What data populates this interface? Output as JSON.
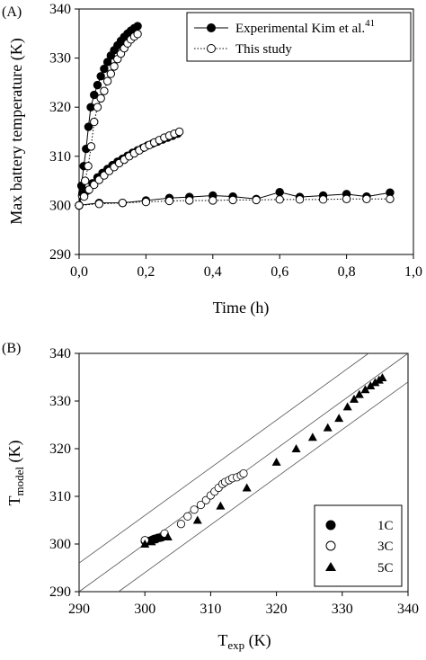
{
  "panels": {
    "a_label": "(A)",
    "b_label": "(B)"
  },
  "chart_data": [
    {
      "type": "line",
      "panel": "(A)",
      "xlabel": "Time (h)",
      "ylabel": "Max battery temperature (K)",
      "xlim": [
        0,
        1.0
      ],
      "ylim": [
        290,
        340
      ],
      "xticks": [
        0,
        0.2,
        0.4,
        0.6,
        0.8,
        1.0
      ],
      "xtick_labels": [
        "0,0",
        "0,2",
        "0,4",
        "0,6",
        "0,8",
        "1,0"
      ],
      "yticks": [
        290,
        300,
        310,
        320,
        330,
        340
      ],
      "ytick_labels": [
        "290",
        "300",
        "310",
        "320",
        "330",
        "340"
      ],
      "legend_position": "top-right",
      "legend": [
        {
          "label": "Experimental Kim et al.",
          "superscript": "41",
          "marker": "filled-circle",
          "line": "solid"
        },
        {
          "label": "This study",
          "superscript": "",
          "marker": "open-circle",
          "line": "dotted"
        }
      ],
      "series": [
        {
          "name": "Experimental Kim et al.41",
          "group": "5C",
          "x": [
            0.0,
            0.007,
            0.014,
            0.021,
            0.028,
            0.035,
            0.045,
            0.055,
            0.065,
            0.075,
            0.085,
            0.095,
            0.105,
            0.115,
            0.125,
            0.135,
            0.145,
            0.155,
            0.165,
            0.175
          ],
          "y": [
            300.0,
            304.0,
            308.0,
            311.5,
            316.0,
            320.0,
            322.5,
            324.5,
            326.3,
            327.8,
            329.2,
            330.5,
            331.6,
            332.6,
            333.5,
            334.3,
            335.0,
            335.6,
            336.1,
            336.5
          ]
        },
        {
          "name": "This study",
          "group": "5C",
          "x": [
            0.0,
            0.009,
            0.018,
            0.027,
            0.036,
            0.045,
            0.055,
            0.065,
            0.075,
            0.085,
            0.095,
            0.105,
            0.115,
            0.125,
            0.135,
            0.145,
            0.155,
            0.165,
            0.175
          ],
          "y": [
            300.0,
            302.0,
            305.0,
            308.0,
            312.0,
            317.0,
            320.0,
            321.8,
            323.3,
            325.3,
            326.8,
            328.3,
            329.8,
            330.9,
            332.0,
            333.0,
            333.8,
            334.4,
            334.9
          ]
        },
        {
          "name": "Experimental Kim et al.41",
          "group": "3C",
          "x": [
            0.0,
            0.01,
            0.025,
            0.04,
            0.055,
            0.07,
            0.085,
            0.1,
            0.115,
            0.13,
            0.145,
            0.16,
            0.175,
            0.19,
            0.205,
            0.22,
            0.235,
            0.25,
            0.265,
            0.28,
            0.295
          ],
          "y": [
            300.0,
            302.5,
            303.0,
            304.5,
            305.7,
            306.6,
            307.4,
            308.2,
            308.9,
            309.5,
            310.1,
            310.7,
            311.2,
            311.7,
            312.2,
            312.6,
            313.0,
            313.4,
            313.8,
            314.2,
            314.6
          ]
        },
        {
          "name": "This study",
          "group": "3C",
          "x": [
            0.0,
            0.015,
            0.03,
            0.045,
            0.06,
            0.075,
            0.09,
            0.105,
            0.12,
            0.135,
            0.15,
            0.165,
            0.18,
            0.195,
            0.21,
            0.225,
            0.24,
            0.255,
            0.27,
            0.285,
            0.3
          ],
          "y": [
            300.0,
            301.8,
            303.2,
            304.2,
            305.2,
            306.1,
            307.0,
            307.8,
            308.6,
            309.3,
            310.0,
            310.6,
            311.2,
            311.8,
            312.3,
            312.8,
            313.3,
            313.8,
            314.2,
            314.6,
            315.0
          ]
        },
        {
          "name": "Experimental Kim et al.41",
          "group": "1C",
          "x": [
            0.0,
            0.06,
            0.13,
            0.2,
            0.27,
            0.33,
            0.4,
            0.46,
            0.53,
            0.6,
            0.66,
            0.73,
            0.8,
            0.86,
            0.93
          ],
          "y": [
            300.0,
            300.5,
            300.5,
            301.0,
            301.5,
            301.7,
            302.0,
            301.8,
            301.3,
            302.7,
            301.7,
            302.0,
            302.3,
            301.8,
            302.6
          ]
        },
        {
          "name": "This study",
          "group": "1C",
          "x": [
            0.0,
            0.06,
            0.13,
            0.2,
            0.27,
            0.33,
            0.4,
            0.46,
            0.53,
            0.6,
            0.66,
            0.73,
            0.8,
            0.86,
            0.93
          ],
          "y": [
            300.0,
            300.3,
            300.5,
            300.7,
            300.9,
            301.0,
            301.0,
            301.1,
            301.1,
            301.2,
            301.2,
            301.2,
            301.3,
            301.3,
            301.3
          ]
        }
      ]
    },
    {
      "type": "scatter",
      "panel": "(B)",
      "xlabel": "T",
      "xlabel_subscript": "exp",
      "xlabel_unit": " (K)",
      "ylabel": "T",
      "ylabel_subscript": "model",
      "ylabel_unit": " (K)",
      "xlim": [
        290,
        340
      ],
      "ylim": [
        290,
        340
      ],
      "xticks": [
        290,
        300,
        310,
        320,
        330,
        340
      ],
      "xtick_labels": [
        "290",
        "300",
        "310",
        "320",
        "330",
        "340"
      ],
      "yticks": [
        290,
        300,
        310,
        320,
        330,
        340
      ],
      "ytick_labels": [
        "290",
        "300",
        "310",
        "320",
        "330",
        "340"
      ],
      "reference_lines": [
        {
          "offset": 6
        },
        {
          "offset": 0
        },
        {
          "offset": -6
        }
      ],
      "legend_position": "bottom-right",
      "legend": [
        {
          "label": "1C",
          "marker": "filled-circle"
        },
        {
          "label": "3C",
          "marker": "open-circle"
        },
        {
          "label": "5C",
          "marker": "filled-triangle"
        }
      ],
      "series": [
        {
          "name": "1C",
          "x": [
            300.0,
            300.5,
            301.0,
            301.3,
            301.5,
            301.7,
            301.8,
            302.0,
            302.3,
            302.6
          ],
          "y": [
            300.6,
            300.6,
            300.8,
            301.0,
            301.1,
            301.0,
            301.2,
            301.3,
            301.3,
            301.4
          ]
        },
        {
          "name": "3C",
          "x": [
            300.0,
            303.0,
            305.5,
            306.5,
            307.5,
            308.5,
            309.3,
            310.0,
            310.6,
            311.2,
            311.8,
            312.2,
            312.8,
            313.3,
            314.0,
            314.6,
            315.0
          ],
          "y": [
            300.8,
            302.2,
            304.2,
            305.8,
            307.2,
            308.2,
            309.2,
            310.2,
            311.0,
            311.8,
            312.6,
            313.0,
            313.4,
            313.8,
            314.0,
            314.4,
            314.8
          ]
        },
        {
          "name": "5C",
          "x": [
            300.0,
            301.0,
            303.5,
            308.0,
            311.5,
            315.5,
            320.0,
            323.0,
            325.5,
            327.8,
            329.5,
            330.8,
            331.8,
            332.6,
            333.5,
            334.3,
            335.0,
            335.6,
            336.1
          ],
          "y": [
            300.0,
            300.5,
            301.5,
            305.0,
            308.0,
            311.8,
            317.2,
            320.0,
            322.4,
            324.4,
            326.4,
            328.8,
            330.4,
            331.4,
            332.4,
            333.2,
            333.9,
            334.4,
            334.9
          ]
        }
      ]
    }
  ]
}
